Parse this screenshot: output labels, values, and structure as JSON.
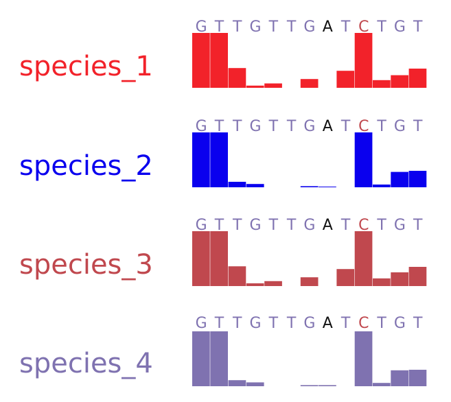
{
  "chart_data": [
    {
      "type": "bar",
      "name": "species_1",
      "color": "#f2222a",
      "categories": [
        "G",
        "T",
        "T",
        "G",
        "T",
        "T",
        "G",
        "A",
        "T",
        "C",
        "T",
        "G",
        "T"
      ],
      "values": [
        1.0,
        1.0,
        0.36,
        0.04,
        0.08,
        0,
        0.16,
        0,
        0.31,
        1.0,
        0.14,
        0.23,
        0.35
      ],
      "ylim": [
        0,
        1
      ]
    },
    {
      "type": "bar",
      "name": "species_2",
      "color": "#0a00ee",
      "categories": [
        "G",
        "T",
        "T",
        "G",
        "T",
        "T",
        "G",
        "A",
        "T",
        "C",
        "T",
        "G",
        "T"
      ],
      "values": [
        1.0,
        1.0,
        0.1,
        0.06,
        0,
        0,
        0.02,
        0.01,
        0,
        1.0,
        0.05,
        0.28,
        0.3
      ],
      "ylim": [
        0,
        1
      ]
    },
    {
      "type": "bar",
      "name": "species_3",
      "color": "#c0484e",
      "categories": [
        "G",
        "T",
        "T",
        "G",
        "T",
        "T",
        "G",
        "A",
        "T",
        "C",
        "T",
        "G",
        "T"
      ],
      "values": [
        1.0,
        1.0,
        0.36,
        0.05,
        0.09,
        0,
        0.16,
        0,
        0.31,
        1.0,
        0.14,
        0.25,
        0.35
      ],
      "ylim": [
        0,
        1
      ]
    },
    {
      "type": "bar",
      "name": "species_4",
      "color": "#7f72b0",
      "categories": [
        "G",
        "T",
        "T",
        "G",
        "T",
        "T",
        "G",
        "A",
        "T",
        "C",
        "T",
        "G",
        "T"
      ],
      "values": [
        1.0,
        1.0,
        0.11,
        0.07,
        0,
        0,
        0.02,
        0.02,
        0,
        1.0,
        0.06,
        0.29,
        0.3
      ],
      "ylim": [
        0,
        1
      ]
    }
  ],
  "colors": {
    "nucleotide_default": "#7f72b0",
    "nucleotide_A": "#111111",
    "nucleotide_C": "#c0484e"
  }
}
